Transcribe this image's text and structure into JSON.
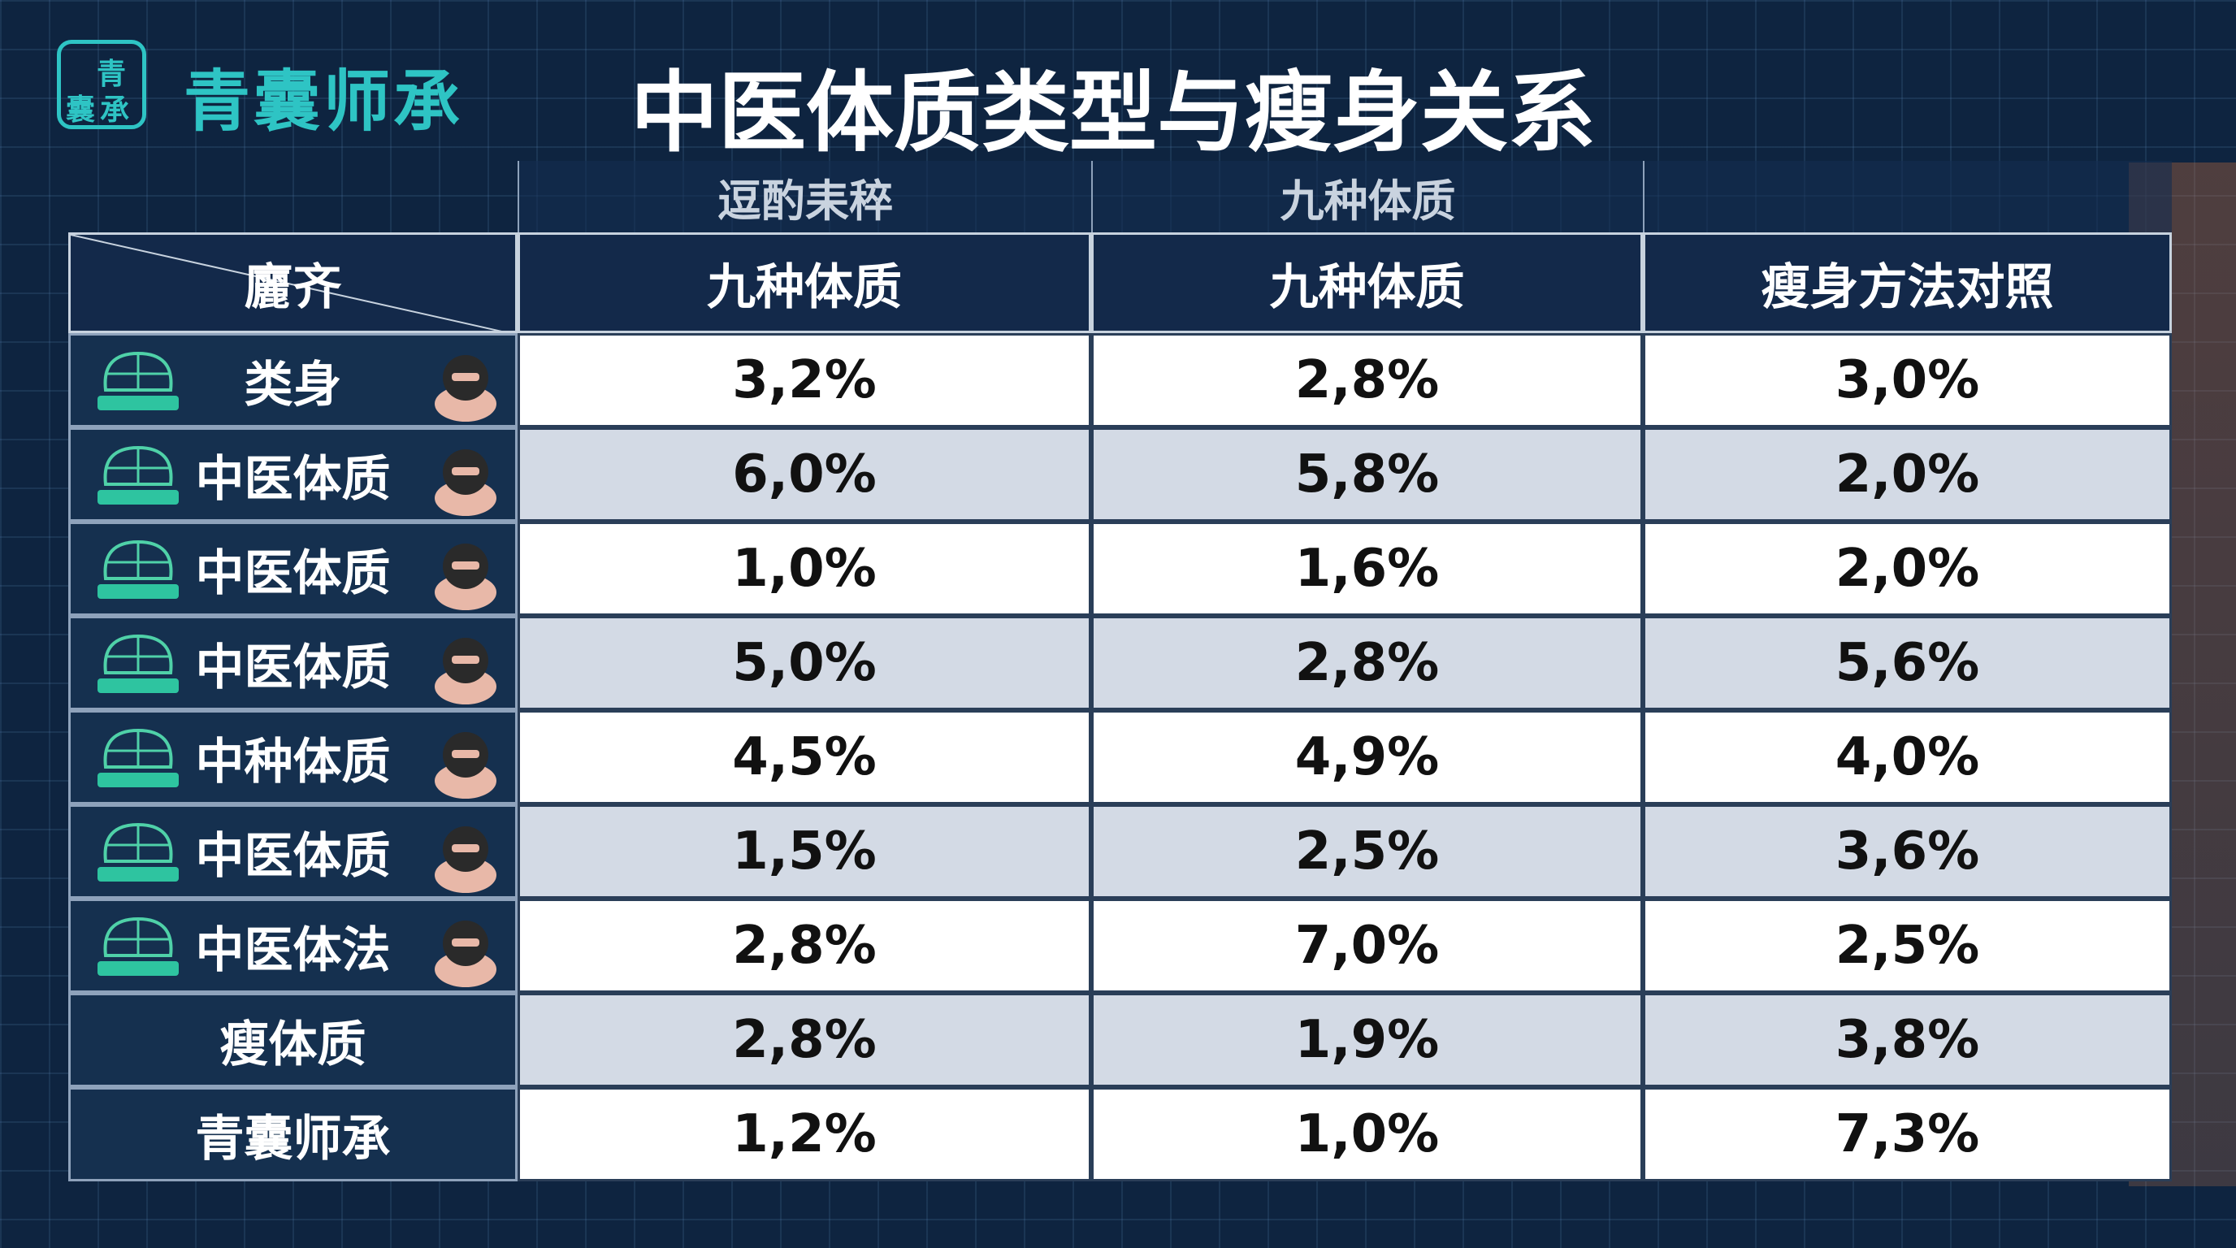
{
  "logo": {
    "mark_chars": [
      "青",
      "囊",
      "承"
    ],
    "name": "青囊师承"
  },
  "title": "中医体质类型与瘦身关系",
  "table": {
    "super_header": [
      "逗酌耒稡",
      "九种体质"
    ],
    "corner": "廲齐",
    "columns": [
      "九种体质",
      "九种体质",
      "瘦身方法对照"
    ],
    "rows": [
      [
        "类身",
        "3,2%",
        "2,8%",
        "3,0%"
      ],
      [
        "中医体质",
        "6,0%",
        "5,8%",
        "2,0%"
      ],
      [
        "中医体质",
        "1,0%",
        "1,6%",
        "2,0%"
      ],
      [
        "中医体质",
        "5,0%",
        "2,8%",
        "5,6%"
      ],
      [
        "中种体质",
        "4,5%",
        "4,9%",
        "4,0%"
      ],
      [
        "中医体质",
        "1,5%",
        "2,5%",
        "3,6%"
      ],
      [
        "中医体法",
        "2,8%",
        "7,0%",
        "2,5%"
      ],
      [
        "瘦体质",
        "2,8%",
        "1,9%",
        "3,8%"
      ],
      [
        "青囊师承",
        "1,2%",
        "1,0%",
        "7,3%"
      ]
    ]
  }
}
